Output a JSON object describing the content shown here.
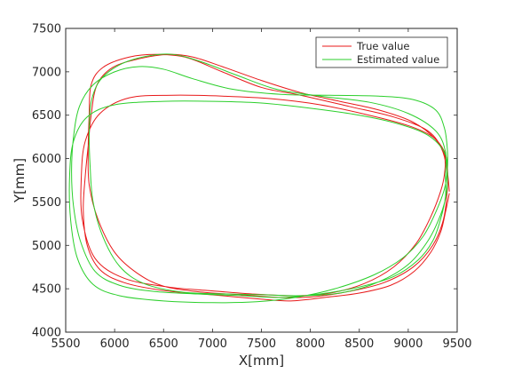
{
  "chart_data": {
    "type": "line",
    "title": "",
    "xlabel": "X[mm]",
    "ylabel": "Y[mm]",
    "xlim": [
      5500,
      9500
    ],
    "ylim": [
      4000,
      7500
    ],
    "xticks": [
      5500,
      6000,
      6500,
      7000,
      7500,
      8000,
      8500,
      9000,
      9500
    ],
    "yticks": [
      4000,
      4500,
      5000,
      5500,
      6000,
      6500,
      7000,
      7500
    ],
    "grid": false,
    "legend_position": "top-right",
    "series": [
      {
        "name": "True value",
        "color": "#e8191a",
        "points": [
          [
            9420,
            5600
          ],
          [
            9380,
            5380
          ],
          [
            9330,
            5150
          ],
          [
            9230,
            4920
          ],
          [
            9060,
            4700
          ],
          [
            8820,
            4540
          ],
          [
            8500,
            4450
          ],
          [
            8150,
            4400
          ],
          [
            7800,
            4360
          ],
          [
            7500,
            4380
          ],
          [
            7000,
            4430
          ],
          [
            6500,
            4480
          ],
          [
            6100,
            4570
          ],
          [
            5850,
            4720
          ],
          [
            5720,
            5000
          ],
          [
            5680,
            5400
          ],
          [
            5700,
            5800
          ],
          [
            5730,
            6150
          ],
          [
            5760,
            6500
          ],
          [
            5820,
            6850
          ],
          [
            5980,
            7050
          ],
          [
            6250,
            7150
          ],
          [
            6550,
            7200
          ],
          [
            6800,
            7170
          ],
          [
            7100,
            7060
          ],
          [
            7500,
            6900
          ],
          [
            7900,
            6760
          ],
          [
            8300,
            6660
          ],
          [
            8700,
            6560
          ],
          [
            9050,
            6420
          ],
          [
            9280,
            6220
          ],
          [
            9370,
            6020
          ],
          [
            9370,
            5820
          ],
          [
            9330,
            5620
          ],
          [
            9230,
            5330
          ],
          [
            9080,
            5020
          ],
          [
            8850,
            4750
          ],
          [
            8550,
            4560
          ],
          [
            8200,
            4450
          ],
          [
            7850,
            4420
          ],
          [
            7400,
            4440
          ],
          [
            6950,
            4480
          ],
          [
            6550,
            4520
          ],
          [
            6100,
            4620
          ],
          [
            5800,
            4850
          ],
          [
            5670,
            5300
          ],
          [
            5660,
            5800
          ],
          [
            5700,
            6200
          ],
          [
            5850,
            6520
          ],
          [
            6150,
            6700
          ],
          [
            6600,
            6730
          ],
          [
            7100,
            6720
          ],
          [
            7600,
            6690
          ],
          [
            8100,
            6620
          ],
          [
            8600,
            6500
          ],
          [
            9000,
            6380
          ],
          [
            9250,
            6250
          ],
          [
            9370,
            6080
          ],
          [
            9400,
            5900
          ],
          [
            9400,
            5650
          ],
          [
            9360,
            5300
          ],
          [
            9250,
            5000
          ],
          [
            9050,
            4750
          ],
          [
            8750,
            4570
          ],
          [
            8400,
            4470
          ],
          [
            8050,
            4410
          ],
          [
            7700,
            4400
          ],
          [
            7300,
            4430
          ],
          [
            6900,
            4460
          ],
          [
            6500,
            4530
          ],
          [
            6230,
            4680
          ],
          [
            6000,
            4920
          ],
          [
            5830,
            5300
          ],
          [
            5740,
            5700
          ],
          [
            5730,
            6100
          ],
          [
            5740,
            6500
          ],
          [
            5760,
            6850
          ],
          [
            5880,
            7050
          ],
          [
            6150,
            7170
          ],
          [
            6450,
            7200
          ],
          [
            6750,
            7160
          ],
          [
            7100,
            7000
          ],
          [
            7500,
            6820
          ],
          [
            7900,
            6730
          ],
          [
            8400,
            6600
          ],
          [
            8850,
            6480
          ],
          [
            9200,
            6320
          ],
          [
            9360,
            6080
          ],
          [
            9400,
            5850
          ],
          [
            9420,
            5620
          ]
        ]
      },
      {
        "name": "Estimated value",
        "color": "#2bcf2b",
        "points": [
          [
            9380,
            5800
          ],
          [
            9380,
            5560
          ],
          [
            9330,
            5300
          ],
          [
            9250,
            5050
          ],
          [
            9100,
            4830
          ],
          [
            8850,
            4640
          ],
          [
            8500,
            4520
          ],
          [
            8100,
            4440
          ],
          [
            7700,
            4400
          ],
          [
            7300,
            4420
          ],
          [
            6850,
            4440
          ],
          [
            6400,
            4470
          ],
          [
            6050,
            4540
          ],
          [
            5800,
            4700
          ],
          [
            5650,
            5050
          ],
          [
            5580,
            5450
          ],
          [
            5560,
            5850
          ],
          [
            5580,
            6250
          ],
          [
            5640,
            6600
          ],
          [
            5780,
            6850
          ],
          [
            6000,
            7000
          ],
          [
            6250,
            7060
          ],
          [
            6500,
            7030
          ],
          [
            6800,
            6920
          ],
          [
            7200,
            6800
          ],
          [
            7700,
            6740
          ],
          [
            8200,
            6730
          ],
          [
            8700,
            6720
          ],
          [
            9050,
            6680
          ],
          [
            9280,
            6560
          ],
          [
            9370,
            6350
          ],
          [
            9400,
            6100
          ],
          [
            9400,
            5880
          ],
          [
            9370,
            5650
          ],
          [
            9280,
            5380
          ],
          [
            9150,
            5100
          ],
          [
            8950,
            4860
          ],
          [
            8650,
            4660
          ],
          [
            8250,
            4500
          ],
          [
            7850,
            4400
          ],
          [
            7450,
            4350
          ],
          [
            7000,
            4340
          ],
          [
            6500,
            4360
          ],
          [
            6050,
            4420
          ],
          [
            5780,
            4550
          ],
          [
            5620,
            4850
          ],
          [
            5550,
            5300
          ],
          [
            5540,
            5800
          ],
          [
            5580,
            6200
          ],
          [
            5720,
            6480
          ],
          [
            6000,
            6620
          ],
          [
            6500,
            6660
          ],
          [
            7000,
            6660
          ],
          [
            7500,
            6640
          ],
          [
            8000,
            6580
          ],
          [
            8500,
            6500
          ],
          [
            8900,
            6400
          ],
          [
            9200,
            6270
          ],
          [
            9370,
            6070
          ],
          [
            9400,
            5850
          ],
          [
            9390,
            5600
          ],
          [
            9330,
            5350
          ],
          [
            9200,
            5050
          ],
          [
            9000,
            4780
          ],
          [
            8700,
            4580
          ],
          [
            8350,
            4460
          ],
          [
            7950,
            4420
          ],
          [
            7550,
            4430
          ],
          [
            7150,
            4440
          ],
          [
            6700,
            4460
          ],
          [
            6300,
            4560
          ],
          [
            6050,
            4760
          ],
          [
            5880,
            5100
          ],
          [
            5780,
            5500
          ],
          [
            5750,
            5900
          ],
          [
            5740,
            6300
          ],
          [
            5760,
            6650
          ],
          [
            5850,
            6900
          ],
          [
            6050,
            7080
          ],
          [
            6330,
            7180
          ],
          [
            6600,
            7200
          ],
          [
            6900,
            7110
          ],
          [
            7250,
            6960
          ],
          [
            7650,
            6800
          ],
          [
            8100,
            6720
          ],
          [
            8600,
            6650
          ],
          [
            9000,
            6520
          ],
          [
            9280,
            6320
          ],
          [
            9380,
            6080
          ],
          [
            9380,
            5800
          ]
        ]
      }
    ]
  }
}
